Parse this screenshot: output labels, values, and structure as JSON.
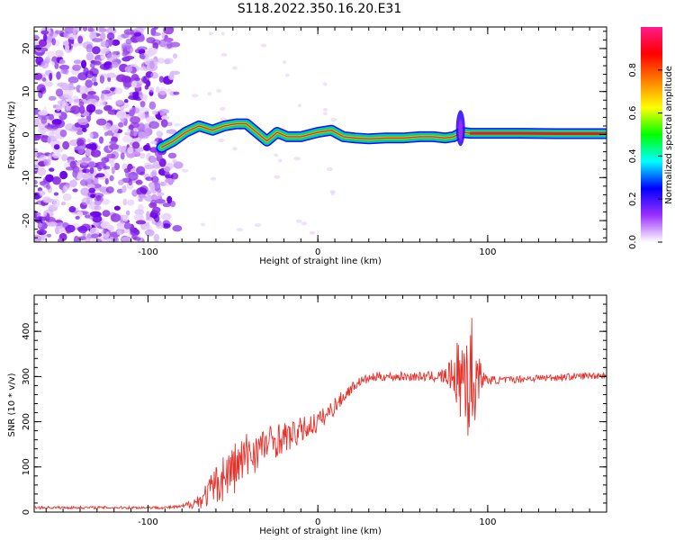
{
  "title": "S118.2022.350.16.20.E31",
  "chart_data": [
    {
      "type": "heatmap",
      "xlabel": "Height of straight line (km)",
      "ylabel": "Frequency (Hz)",
      "xlim": [
        -167,
        170
      ],
      "ylim": [
        -25,
        25
      ],
      "x_ticks": [
        -100,
        0,
        100
      ],
      "y_ticks": [
        -20,
        -10,
        0,
        10,
        20
      ],
      "x_tick_labels": [
        "-100",
        "0",
        "100"
      ],
      "y_tick_labels": [
        "-20",
        "-10",
        "0",
        "10",
        "20"
      ],
      "colorbar": {
        "label": "Normalized spectral amplitude",
        "range": [
          0,
          1
        ],
        "ticks": [
          0.0,
          0.2,
          0.4,
          0.6,
          0.8
        ],
        "tick_labels": [
          "0.0",
          "0.2",
          "0.4",
          "0.6",
          "0.8"
        ],
        "colors": [
          "#ffffff",
          "#9b30ff",
          "#0000ff",
          "#00ffff",
          "#00ff00",
          "#ffff00",
          "#ff8000",
          "#ff0000",
          "#ff1a8c"
        ]
      },
      "ridge": {
        "x": [
          -92,
          -85,
          -78,
          -70,
          -62,
          -55,
          -48,
          -42,
          -36,
          -30,
          -24,
          -18,
          -10,
          0,
          8,
          15,
          22,
          30,
          40,
          50,
          60,
          68,
          75,
          80,
          85,
          90,
          100,
          120,
          140,
          160,
          170
        ],
        "y": [
          -3,
          -1.5,
          0.5,
          2,
          1,
          2,
          2.5,
          2.5,
          0.5,
          -1.5,
          0.5,
          -0.5,
          -0.5,
          0.5,
          1,
          -0.5,
          -0.8,
          -1,
          -0.8,
          -0.8,
          -0.5,
          -0.5,
          -0.8,
          -0.5,
          0.5,
          0.3,
          0.3,
          0.3,
          0.2,
          0.2,
          0.2
        ]
      }
    },
    {
      "type": "line",
      "xlabel": "Height of straight line (km)",
      "ylabel": "SNR (10 * v/v)",
      "xlim": [
        -167,
        170
      ],
      "ylim": [
        0,
        480
      ],
      "x_ticks": [
        -100,
        0,
        100
      ],
      "y_ticks": [
        0,
        100,
        200,
        300,
        400
      ],
      "x_tick_labels": [
        "-100",
        "0",
        "100"
      ],
      "y_tick_labels": [
        "0",
        "100",
        "200",
        "300",
        "400"
      ],
      "series": [
        {
          "color": "#e8302a",
          "x": [
            -167,
            -150,
            -130,
            -110,
            -90,
            -80,
            -75,
            -70,
            -65,
            -60,
            -55,
            -50,
            -45,
            -40,
            -35,
            -30,
            -25,
            -20,
            -15,
            -10,
            -5,
            0,
            5,
            10,
            15,
            20,
            25,
            30,
            35,
            40,
            50,
            60,
            70,
            75,
            80,
            85,
            88,
            90,
            92,
            94,
            96,
            98,
            100,
            110,
            120,
            130,
            140,
            150,
            160,
            170
          ],
          "y": [
            10,
            10,
            10,
            10,
            10,
            12,
            18,
            25,
            40,
            60,
            80,
            95,
            110,
            130,
            140,
            150,
            160,
            165,
            170,
            180,
            190,
            200,
            215,
            235,
            255,
            275,
            290,
            295,
            300,
            300,
            300,
            300,
            300,
            300,
            305,
            300,
            320,
            270,
            300,
            300,
            300,
            295,
            292,
            292,
            295,
            297,
            298,
            300,
            302,
            303
          ],
          "noise": [
            3,
            3,
            3,
            3,
            3,
            4,
            10,
            18,
            30,
            45,
            55,
            60,
            60,
            55,
            45,
            40,
            40,
            35,
            30,
            30,
            25,
            25,
            20,
            20,
            15,
            12,
            10,
            10,
            10,
            10,
            10,
            10,
            12,
            20,
            40,
            120,
            160,
            180,
            120,
            60,
            30,
            15,
            10,
            8,
            8,
            8,
            8,
            8,
            8,
            8
          ]
        }
      ]
    }
  ]
}
